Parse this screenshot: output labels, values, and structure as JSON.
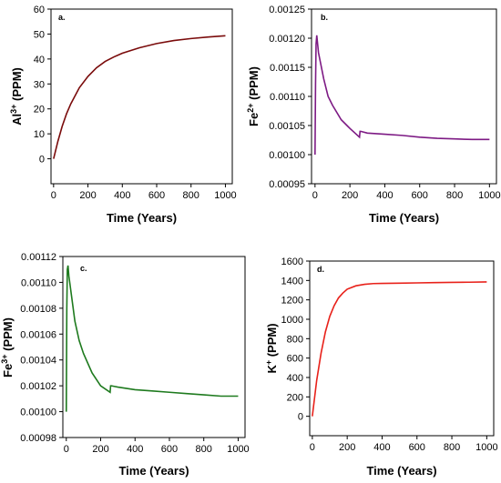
{
  "chart_data": [
    {
      "type": "line",
      "panel_label": "a.",
      "xlabel": "Time (Years)",
      "ylabel_base": "Al",
      "ylabel_sup": "3+",
      "ylabel_rest": " (PPM)",
      "xlim": [
        -15,
        1040
      ],
      "ylim": [
        -10,
        60
      ],
      "xticks": [
        0,
        200,
        400,
        600,
        800,
        1000
      ],
      "yticks": [
        0,
        10,
        20,
        30,
        40,
        50,
        60
      ],
      "ytick_labels": [
        "0",
        "10",
        "20",
        "30",
        "40",
        "50",
        "60"
      ],
      "color": "#7a0b0b",
      "series": [
        {
          "x": [
            0,
            25,
            50,
            75,
            100,
            150,
            200,
            250,
            300,
            350,
            400,
            500,
            600,
            700,
            800,
            900,
            1000
          ],
          "y": [
            0,
            7,
            13,
            18,
            22,
            28.5,
            33,
            36.5,
            39,
            40.8,
            42.3,
            44.5,
            46.2,
            47.4,
            48.2,
            48.8,
            49.3
          ]
        }
      ]
    },
    {
      "type": "line",
      "panel_label": "b.",
      "xlabel": "Time (Years)",
      "ylabel_base": "Fe",
      "ylabel_sup": "2+",
      "ylabel_rest": " (PPM)",
      "xlim": [
        -20,
        1040
      ],
      "ylim": [
        0.00095,
        0.00125
      ],
      "xticks": [
        0,
        200,
        400,
        600,
        800,
        1000
      ],
      "yticks": [
        0.00095,
        0.001,
        0.00105,
        0.0011,
        0.00115,
        0.0012,
        0.00125
      ],
      "ytick_labels": [
        "0.00095",
        "0.00100",
        "0.00105",
        "0.00110",
        "0.00115",
        "0.00120",
        "0.00125"
      ],
      "color": "#7d1a84",
      "series": [
        {
          "x": [
            0,
            3,
            6,
            10,
            15,
            20,
            30,
            50,
            75,
            100,
            150,
            200,
            255,
            258,
            262,
            300,
            400,
            500,
            600,
            700,
            800,
            900,
            950,
            1000
          ],
          "y": [
            0.001,
            0.00112,
            0.00119,
            0.001205,
            0.00119,
            0.001175,
            0.00116,
            0.00113,
            0.0011,
            0.001085,
            0.00106,
            0.001045,
            0.00103,
            0.00104,
            0.00104,
            0.001037,
            0.001035,
            0.001033,
            0.00103,
            0.001028,
            0.001027,
            0.001026,
            0.001026,
            0.001026
          ]
        }
      ]
    },
    {
      "type": "line",
      "panel_label": "c.",
      "xlabel": "Time (Years)",
      "ylabel_base": "Fe",
      "ylabel_sup": "3+",
      "ylabel_rest": " (PPM)",
      "xlim": [
        -20,
        1040
      ],
      "ylim": [
        0.00098,
        0.00112
      ],
      "xticks": [
        0,
        200,
        400,
        600,
        800,
        1000
      ],
      "yticks": [
        0.00098,
        0.001,
        0.00102,
        0.00104,
        0.00106,
        0.00108,
        0.0011,
        0.00112
      ],
      "ytick_labels": [
        "0.00098",
        "0.00100",
        "0.00102",
        "0.00104",
        "0.00106",
        "0.00108",
        "0.00110",
        "0.00112"
      ],
      "color": "#1e7a1e",
      "series": [
        {
          "x": [
            0,
            3,
            6,
            10,
            15,
            20,
            30,
            50,
            75,
            100,
            150,
            200,
            255,
            258,
            262,
            300,
            400,
            500,
            600,
            700,
            800,
            900,
            950,
            1000
          ],
          "y": [
            0.001,
            0.00108,
            0.00111,
            0.001113,
            0.001105,
            0.0011,
            0.00109,
            0.00107,
            0.001055,
            0.001045,
            0.00103,
            0.00102,
            0.001015,
            0.00102,
            0.00102,
            0.001019,
            0.001017,
            0.001016,
            0.001015,
            0.001014,
            0.001013,
            0.001012,
            0.001012,
            0.001012
          ]
        }
      ]
    },
    {
      "type": "line",
      "panel_label": "d.",
      "xlabel": "Time (Years)",
      "ylabel_base": "K",
      "ylabel_sup": "+",
      "ylabel_rest": " (PPM)",
      "xlim": [
        -15,
        1040
      ],
      "ylim": [
        -200,
        1600
      ],
      "xticks": [
        0,
        200,
        400,
        600,
        800,
        1000
      ],
      "yticks": [
        0,
        200,
        400,
        600,
        800,
        1000,
        1200,
        1400,
        1600
      ],
      "ytick_labels": [
        "0",
        "200",
        "400",
        "600",
        "800",
        "1000",
        "1200",
        "1400",
        "1600"
      ],
      "color": "#e8211a",
      "series": [
        {
          "x": [
            0,
            25,
            50,
            75,
            100,
            125,
            150,
            175,
            200,
            250,
            300,
            350,
            400,
            500,
            600,
            700,
            800,
            900,
            1000
          ],
          "y": [
            0,
            370,
            650,
            870,
            1030,
            1140,
            1220,
            1270,
            1310,
            1345,
            1360,
            1368,
            1370,
            1372,
            1375,
            1378,
            1380,
            1382,
            1385
          ]
        }
      ]
    }
  ]
}
